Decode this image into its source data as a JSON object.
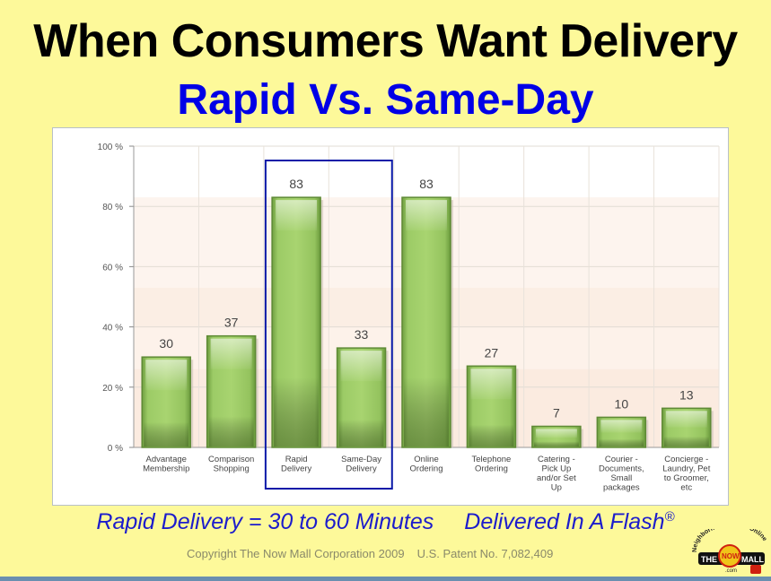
{
  "header": {
    "title": "When Consumers Want Delivery",
    "subtitle": "Rapid Vs. Same-Day"
  },
  "chart_data": {
    "type": "bar",
    "title": "",
    "xlabel": "",
    "ylabel": "",
    "ylim": [
      0,
      100
    ],
    "yticks": [
      "0 %",
      "20 %",
      "40 %",
      "60 %",
      "80 %",
      "100 %"
    ],
    "categories": [
      [
        "Advantage",
        "Membership"
      ],
      [
        "Comparison",
        "Shopping"
      ],
      [
        "Rapid",
        "Delivery"
      ],
      [
        "Same-Day",
        "Delivery"
      ],
      [
        "Online",
        "Ordering"
      ],
      [
        "Telephone",
        "Ordering"
      ],
      [
        "Catering -",
        "Pick Up",
        "and/or Set",
        "Up"
      ],
      [
        "Courier -",
        "Documents,",
        "Small",
        "packages"
      ],
      [
        "Concierge -",
        "Laundry, Pet",
        "to Groomer,",
        "etc"
      ]
    ],
    "values": [
      30,
      37,
      83,
      33,
      83,
      27,
      7,
      10,
      13
    ],
    "highlight": [
      2,
      3
    ],
    "grid": true,
    "colors": {
      "bar": "#8cc05a",
      "bar_dark": "#5e8a35",
      "highlight_box": "#0a1aa8"
    }
  },
  "tagline": {
    "left": "Rapid Delivery = 30 to 60 Minutes",
    "right": "Delivered In A Flash",
    "mark": "®"
  },
  "footer": {
    "copyright": "Copyright The Now Mall Corporation 2009",
    "patent": "U.S. Patent No. 7,082,409"
  },
  "logo": {
    "arc_text": "Neighborhood Stores Online",
    "the": "THE",
    "now": "NOW",
    "mall": "MALL",
    "com": ".com"
  }
}
